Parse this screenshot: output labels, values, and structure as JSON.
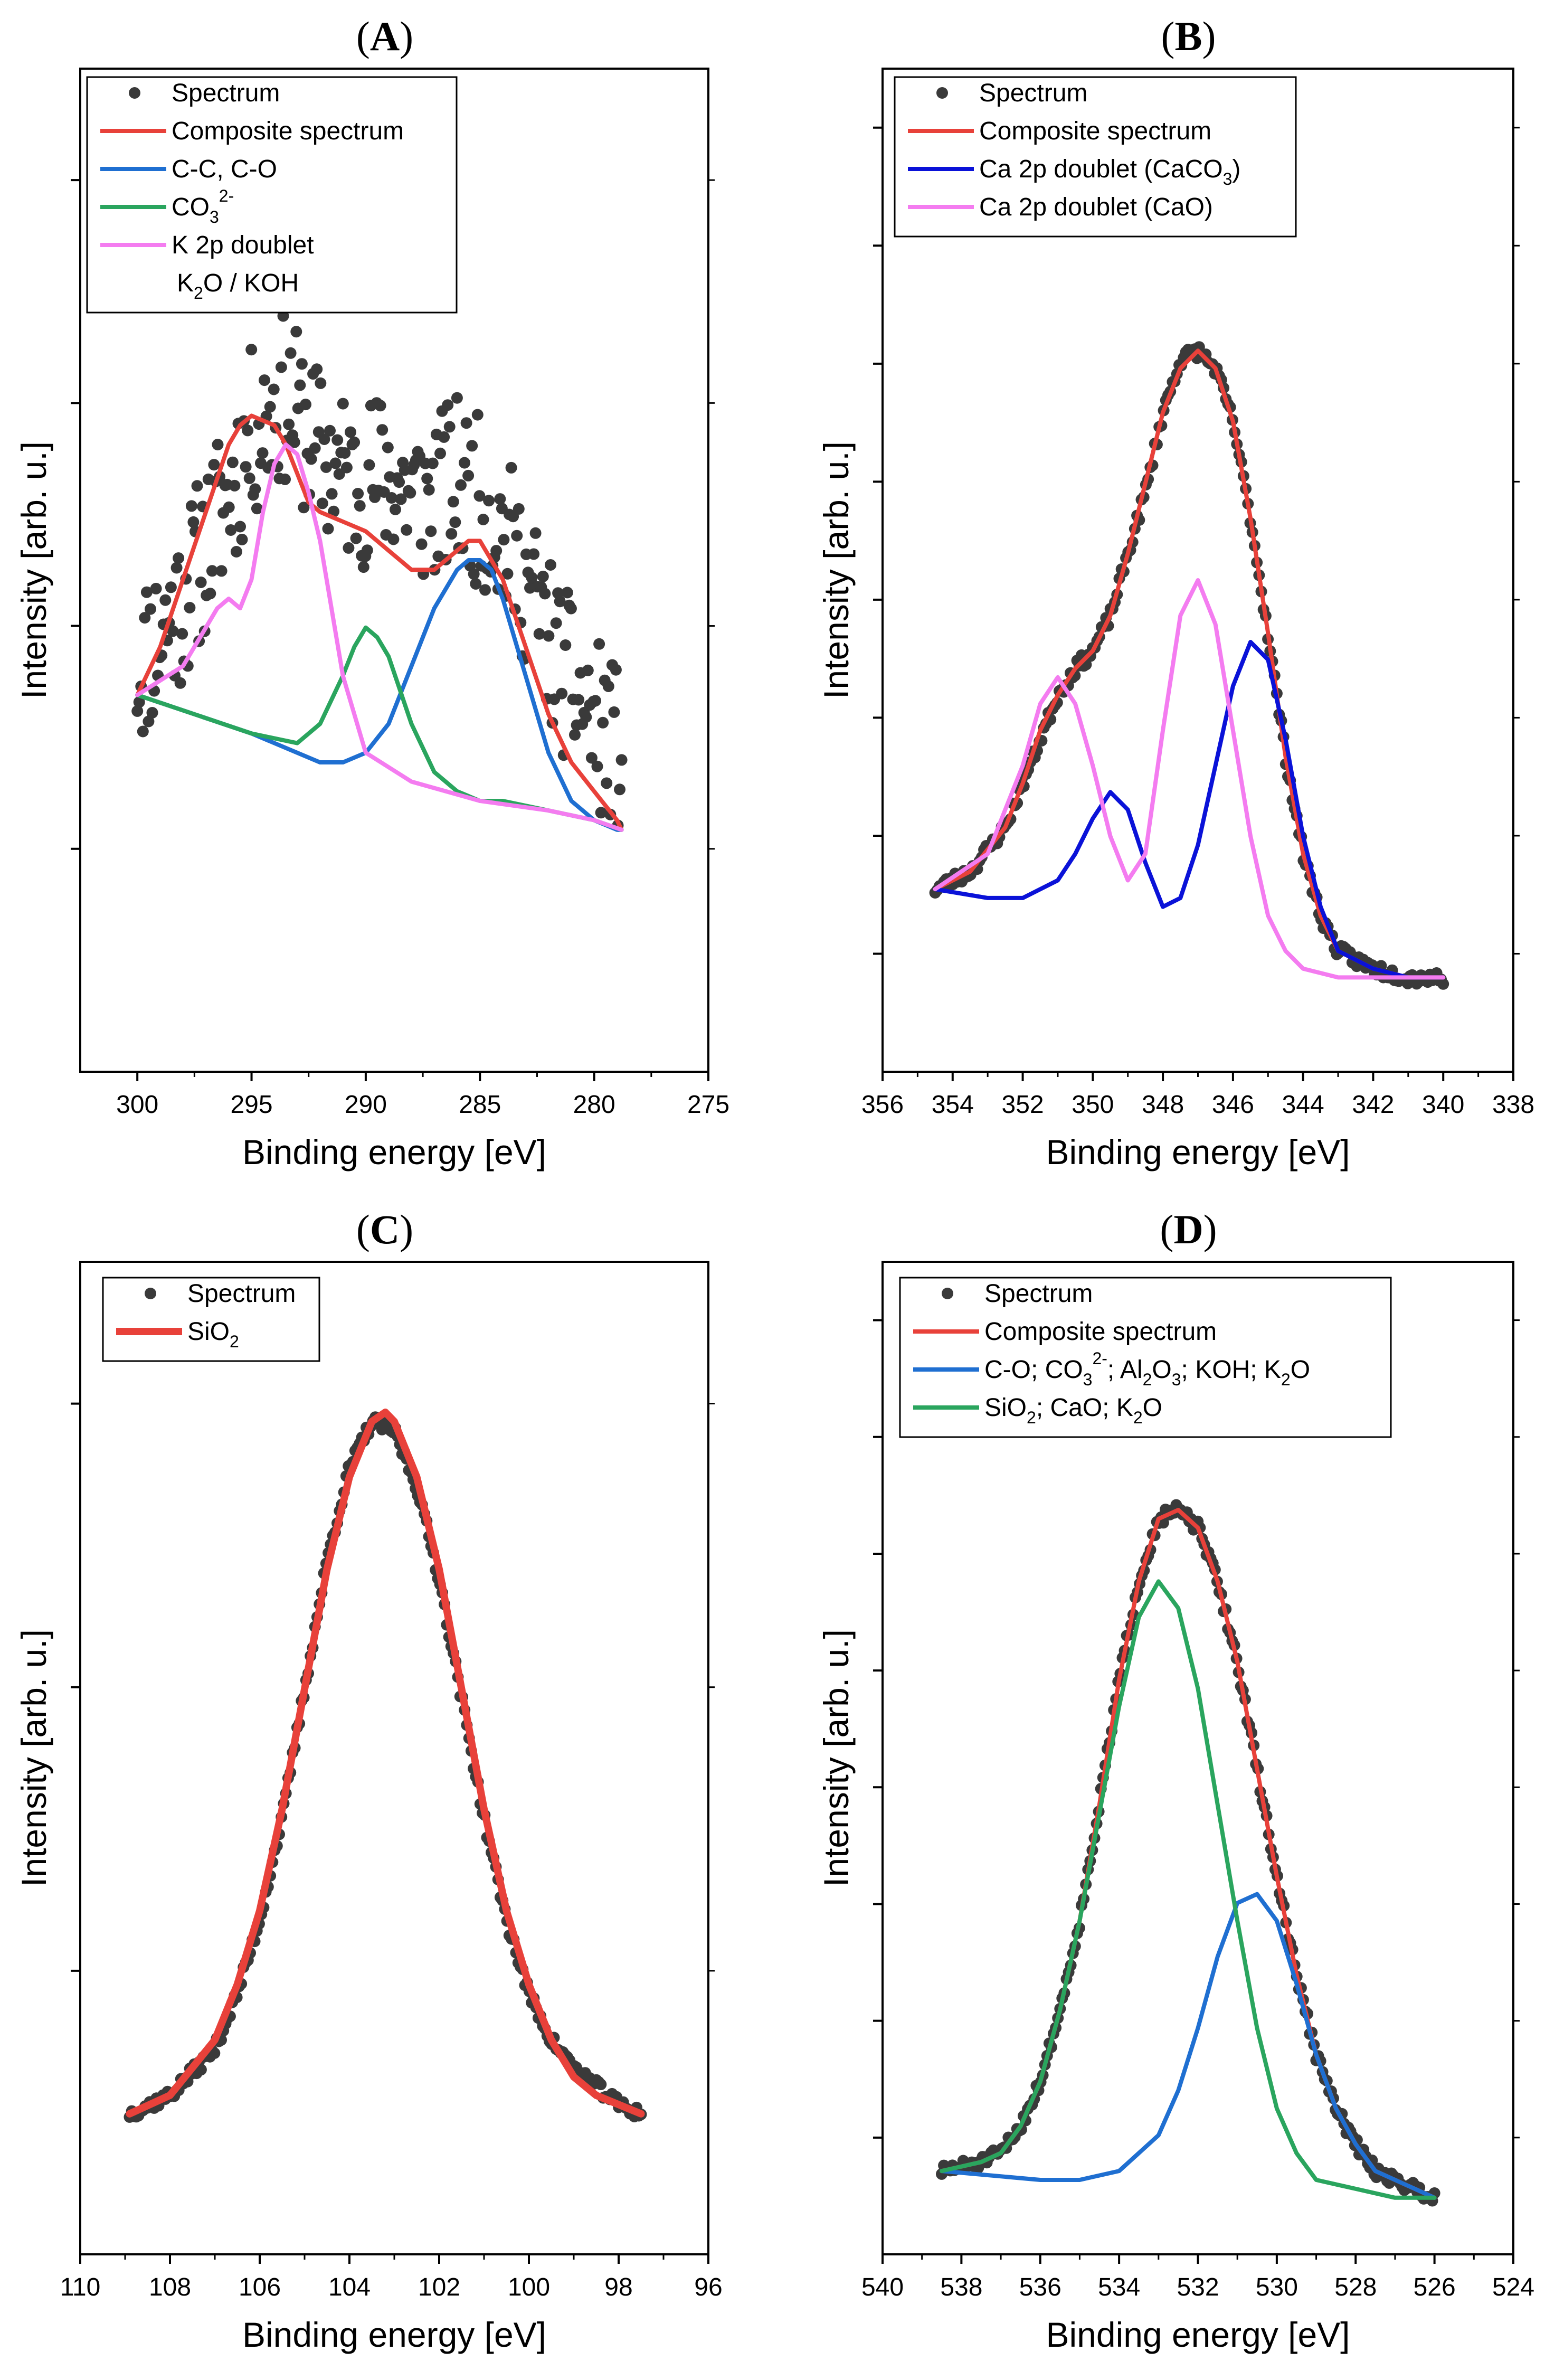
{
  "chart_data": [
    {
      "type": "scatter",
      "panel": "A",
      "title": "(A)",
      "xlabel": "Binding energy [eV]",
      "ylabel": "Intensity [arb. u.]",
      "xlim": [
        302.5,
        275
      ],
      "ylim": [
        0,
        100
      ],
      "xticks": [
        300,
        295,
        290,
        285,
        280,
        275
      ],
      "legend": [
        {
          "label": "Spectrum",
          "color": "#3a3a3a",
          "style": "marker"
        },
        {
          "label": "Composite spectrum",
          "color": "#e8413a",
          "style": "line"
        },
        {
          "label": "C-C, C-O",
          "color": "#1f6fd1",
          "style": "line"
        },
        {
          "main": "CO",
          "sub": "3",
          "sup": "2-",
          "tail": "",
          "color": "#2aa55e",
          "style": "line"
        },
        {
          "label": "K 2p doublet",
          "color": "#f47cf0",
          "style": "line"
        },
        {
          "parts": [
            "K",
            "2",
            "O / KOH"
          ],
          "style": "none"
        }
      ],
      "series": [
        {
          "name": "Spectrum",
          "color": "#3a3a3a",
          "kind": "scatter",
          "seed": 11,
          "noise": 9,
          "x": [
            300.0,
            298.0,
            296.5,
            295.0,
            293.5,
            292.0,
            290.5,
            289.0,
            287.5,
            286.0,
            284.5,
            283.0,
            281.5,
            280.0,
            278.8
          ],
          "y": [
            39,
            46,
            54,
            63,
            67,
            61,
            58,
            59,
            56,
            58,
            55,
            48,
            39,
            33,
            30
          ]
        },
        {
          "name": "Composite spectrum",
          "color": "#e8413a",
          "kind": "line",
          "x": [
            300.0,
            299.0,
            298.0,
            297.0,
            296.0,
            295.5,
            295.0,
            294.0,
            293.5,
            293.0,
            292.5,
            292.0,
            291.0,
            290.0,
            289.0,
            288.0,
            287.0,
            286.5,
            286.0,
            285.5,
            285.0,
            284.0,
            283.0,
            282.0,
            281.0,
            280.0,
            279.0,
            278.8
          ],
          "y": [
            36,
            41,
            48,
            55,
            62,
            64,
            65,
            64,
            62,
            59,
            56,
            55,
            54,
            53,
            51,
            49,
            49,
            50,
            51,
            52,
            52,
            48,
            41,
            34,
            29,
            26,
            23,
            22
          ]
        },
        {
          "name": "C-C, C-O",
          "color": "#1f6fd1",
          "kind": "line",
          "x": [
            300.0,
            295.0,
            293.0,
            292.0,
            291.0,
            290.0,
            289.0,
            288.0,
            287.0,
            286.0,
            285.5,
            285.0,
            284.5,
            284.0,
            283.0,
            282.0,
            281.0,
            280.0,
            279.0,
            278.8
          ],
          "y": [
            36,
            32,
            30,
            29,
            29,
            30,
            33,
            39,
            45,
            49,
            50,
            50,
            49,
            46,
            38,
            30,
            25,
            23,
            22,
            22
          ]
        },
        {
          "name": "CO3 2-",
          "color": "#2aa55e",
          "kind": "line",
          "x": [
            300.0,
            295.0,
            293.0,
            292.0,
            291.0,
            290.5,
            290.0,
            289.5,
            289.0,
            288.0,
            287.0,
            286.0,
            285.0,
            284.0,
            282.0,
            280.0,
            278.8
          ],
          "y": [
            36,
            32,
            31,
            33,
            38,
            41,
            43,
            42,
            40,
            33,
            28,
            26,
            25,
            25,
            24,
            23,
            22
          ]
        },
        {
          "name": "K 2p doublet",
          "color": "#f47cf0",
          "kind": "line",
          "x": [
            300.0,
            298.0,
            297.0,
            296.5,
            296.0,
            295.5,
            295.0,
            294.5,
            294.0,
            293.5,
            293.0,
            292.5,
            292.0,
            291.5,
            291.0,
            290.0,
            288.0,
            285.0,
            282.0,
            280.0,
            278.8
          ],
          "y": [
            36,
            39,
            43,
            45,
            46,
            45,
            48,
            55,
            60,
            62,
            61,
            57,
            52,
            45,
            38,
            30,
            27,
            25,
            24,
            23,
            22
          ]
        }
      ]
    },
    {
      "type": "scatter",
      "panel": "B",
      "title": "(B)",
      "xlabel": "Binding energy [eV]",
      "ylabel": "Intensity [arb. u.]",
      "xlim": [
        356,
        338
      ],
      "ylim": [
        0,
        100
      ],
      "xticks": [
        356,
        354,
        352,
        350,
        348,
        346,
        344,
        342,
        340,
        338
      ],
      "legend": [
        {
          "label": "Spectrum",
          "color": "#3a3a3a",
          "style": "marker"
        },
        {
          "label": "Composite spectrum",
          "color": "#e8413a",
          "style": "line"
        },
        {
          "main": "Ca 2p doublet (CaCO",
          "sub": "3",
          "sup": "",
          "tail": ")",
          "color": "#0a12d8",
          "style": "line"
        },
        {
          "label": "Ca 2p doublet (CaO)",
          "color": "#f47cf0",
          "style": "line"
        }
      ],
      "series": [
        {
          "name": "Spectrum",
          "color": "#3a3a3a",
          "kind": "scatter",
          "seed": 23,
          "noise": 0.8,
          "x": [
            354.5,
            353.5,
            352.5,
            351.5,
            351.0,
            350.5,
            350.0,
            349.5,
            349.0,
            348.5,
            348.0,
            347.5,
            347.0,
            346.5,
            346.0,
            345.5,
            345.0,
            344.5,
            344.0,
            343.5,
            343.0,
            342.0,
            341.0,
            340.0
          ],
          "y": [
            15,
            17,
            22,
            32,
            37,
            40,
            42,
            46,
            53,
            60,
            69,
            75,
            76,
            74,
            68,
            57,
            44,
            30,
            19,
            12,
            8,
            6,
            5,
            5
          ]
        },
        {
          "name": "Composite spectrum",
          "color": "#e8413a",
          "kind": "line",
          "x": [
            354.5,
            353.5,
            352.5,
            352.0,
            351.5,
            351.0,
            350.5,
            350.0,
            349.5,
            349.0,
            348.5,
            348.0,
            347.5,
            347.0,
            346.5,
            346.0,
            345.5,
            345.0,
            344.5,
            344.0,
            343.5,
            343.0,
            342.0,
            341.0,
            340.0
          ],
          "y": [
            15,
            17,
            22,
            27,
            33,
            37,
            40,
            42,
            46,
            53,
            61,
            69,
            74,
            76,
            74,
            68,
            57,
            44,
            30,
            19,
            12,
            8,
            6,
            5,
            5
          ]
        },
        {
          "name": "Ca 2p doublet (CaCO3)",
          "color": "#0a12d8",
          "kind": "line",
          "x": [
            354.5,
            353.0,
            352.0,
            351.0,
            350.5,
            350.0,
            349.5,
            349.0,
            348.5,
            348.0,
            347.5,
            347.0,
            346.5,
            346.0,
            345.5,
            345.0,
            344.5,
            344.0,
            343.5,
            343.0,
            342.0,
            341.0,
            340.0
          ],
          "y": [
            15,
            14,
            14,
            16,
            19,
            23,
            26,
            24,
            18,
            13,
            14,
            20,
            29,
            38,
            43,
            41,
            32,
            21,
            13,
            8,
            6,
            5,
            5
          ]
        },
        {
          "name": "Ca 2p doublet (CaO)",
          "color": "#f47cf0",
          "kind": "line",
          "x": [
            354.5,
            353.0,
            352.0,
            351.5,
            351.0,
            350.5,
            350.0,
            349.5,
            349.0,
            348.5,
            348.0,
            347.5,
            347.0,
            346.5,
            346.0,
            345.5,
            345.0,
            344.5,
            344.0,
            343.0,
            342.0,
            341.0,
            340.0
          ],
          "y": [
            15,
            19,
            29,
            36,
            39,
            36,
            29,
            21,
            16,
            19,
            33,
            46,
            50,
            45,
            33,
            21,
            12,
            8,
            6,
            5,
            5,
            5,
            5
          ]
        }
      ]
    },
    {
      "type": "scatter",
      "panel": "C",
      "title": "(C)",
      "xlabel": "Binding energy [eV]",
      "ylabel": "Intensity [arb. u.]",
      "xlim": [
        110,
        96
      ],
      "ylim": [
        0,
        100
      ],
      "xticks": [
        110,
        108,
        106,
        104,
        102,
        100,
        98,
        96
      ],
      "legend": [
        {
          "label": "Spectrum",
          "color": "#3a3a3a",
          "style": "marker"
        },
        {
          "main": "SiO",
          "sub": "2",
          "sup": "",
          "tail": "",
          "color": "#e8413a",
          "style": "line"
        }
      ],
      "series": [
        {
          "name": "Spectrum",
          "color": "#3a3a3a",
          "kind": "scatter",
          "seed": 37,
          "noise": 0.7,
          "x": [
            108.9,
            108.0,
            107.0,
            106.5,
            106.0,
            105.5,
            105.0,
            104.5,
            104.0,
            103.5,
            103.0,
            102.5,
            102.0,
            101.5,
            101.0,
            100.5,
            100.0,
            99.5,
            99.0,
            98.5,
            98.0,
            97.5
          ],
          "y": [
            12,
            14,
            19,
            25,
            33,
            44,
            58,
            72,
            82,
            87,
            86,
            80,
            70,
            57,
            44,
            33,
            25,
            20,
            17,
            15,
            13,
            12
          ]
        },
        {
          "name": "SiO2",
          "color": "#e8413a",
          "kind": "line",
          "x": [
            108.9,
            108.0,
            107.0,
            106.5,
            106.0,
            105.5,
            105.0,
            104.5,
            104.0,
            103.5,
            103.2,
            103.0,
            102.5,
            102.0,
            101.5,
            101.0,
            100.5,
            100.0,
            99.5,
            99.0,
            98.5,
            98.0,
            97.5
          ],
          "y": [
            12,
            14,
            20,
            26,
            34,
            45,
            58,
            71,
            81,
            87,
            88,
            87,
            81,
            71,
            58,
            45,
            34,
            26,
            20,
            16,
            14,
            13,
            12
          ]
        }
      ]
    },
    {
      "type": "scatter",
      "panel": "D",
      "title": "(D)",
      "xlabel": "Binding energy [eV]",
      "ylabel": "Intensity [arb. u.]",
      "xlim": [
        540,
        524
      ],
      "ylim": [
        0,
        100
      ],
      "xticks": [
        540,
        538,
        536,
        534,
        532,
        530,
        528,
        526,
        524
      ],
      "legend": [
        {
          "label": "Spectrum",
          "color": "#3a3a3a",
          "style": "marker"
        },
        {
          "label": "Composite spectrum",
          "color": "#e8413a",
          "style": "line"
        },
        {
          "parts": [
            "C-O; CO",
            "3",
            "2-",
            "; Al",
            "2",
            "O",
            "3",
            "; KOH; K",
            "2",
            "O"
          ],
          "color": "#1f6fd1",
          "style": "line"
        },
        {
          "parts": [
            "SiO",
            "2",
            "; CaO; K",
            "2",
            "O"
          ],
          "color": "#2aa55e",
          "style": "line"
        }
      ],
      "series": [
        {
          "name": "Spectrum",
          "color": "#3a3a3a",
          "kind": "scatter",
          "seed": 51,
          "noise": 0.7,
          "x": [
            538.5,
            537.5,
            537.0,
            536.5,
            536.0,
            535.5,
            535.0,
            534.5,
            534.0,
            533.5,
            533.0,
            532.5,
            532.0,
            531.5,
            531.0,
            530.5,
            530.0,
            529.5,
            529.0,
            528.5,
            528.0,
            527.5,
            527.0,
            526.5,
            526.0
          ],
          "y": [
            6,
            7,
            8,
            11,
            16,
            24,
            34,
            47,
            61,
            72,
            79,
            80,
            78,
            72,
            63,
            51,
            39,
            28,
            19,
            13,
            9,
            6,
            5,
            4,
            3
          ]
        },
        {
          "name": "Composite spectrum",
          "color": "#e8413a",
          "kind": "line",
          "x": [
            538.5,
            537.5,
            537.0,
            536.5,
            536.0,
            535.5,
            535.0,
            534.5,
            534.0,
            533.5,
            533.0,
            532.5,
            532.0,
            531.5,
            531.0,
            530.5,
            530.0,
            529.5,
            529.0,
            528.5,
            528.0,
            527.5,
            527.0,
            526.5,
            526.0
          ],
          "y": [
            6,
            7,
            8,
            11,
            16,
            24,
            34,
            47,
            61,
            72,
            79,
            80,
            78,
            72,
            63,
            51,
            39,
            28,
            19,
            13,
            9,
            6,
            5,
            4,
            3
          ]
        },
        {
          "name": "C-O; CO3 2-; Al2O3; KOH; K2O",
          "color": "#1f6fd1",
          "kind": "line",
          "x": [
            538.5,
            536.0,
            535.0,
            534.0,
            533.0,
            532.5,
            532.0,
            531.5,
            531.0,
            530.5,
            530.0,
            529.5,
            529.0,
            528.5,
            528.0,
            527.5,
            527.0,
            526.5,
            526.0
          ],
          "y": [
            6,
            5,
            5,
            6,
            10,
            15,
            22,
            30,
            36,
            37,
            34,
            27,
            19,
            13,
            9,
            6,
            5,
            4,
            3
          ]
        },
        {
          "name": "SiO2; CaO; K2O",
          "color": "#2aa55e",
          "kind": "line",
          "x": [
            538.5,
            537.5,
            537.0,
            536.5,
            536.0,
            535.5,
            535.0,
            534.5,
            534.0,
            533.5,
            533.0,
            532.5,
            532.0,
            531.5,
            531.0,
            530.5,
            530.0,
            529.5,
            529.0,
            528.0,
            527.0,
            526.0
          ],
          "y": [
            6,
            7,
            8,
            11,
            16,
            24,
            34,
            46,
            58,
            68,
            72,
            69,
            60,
            47,
            34,
            22,
            13,
            8,
            5,
            4,
            3,
            3
          ]
        }
      ]
    }
  ]
}
